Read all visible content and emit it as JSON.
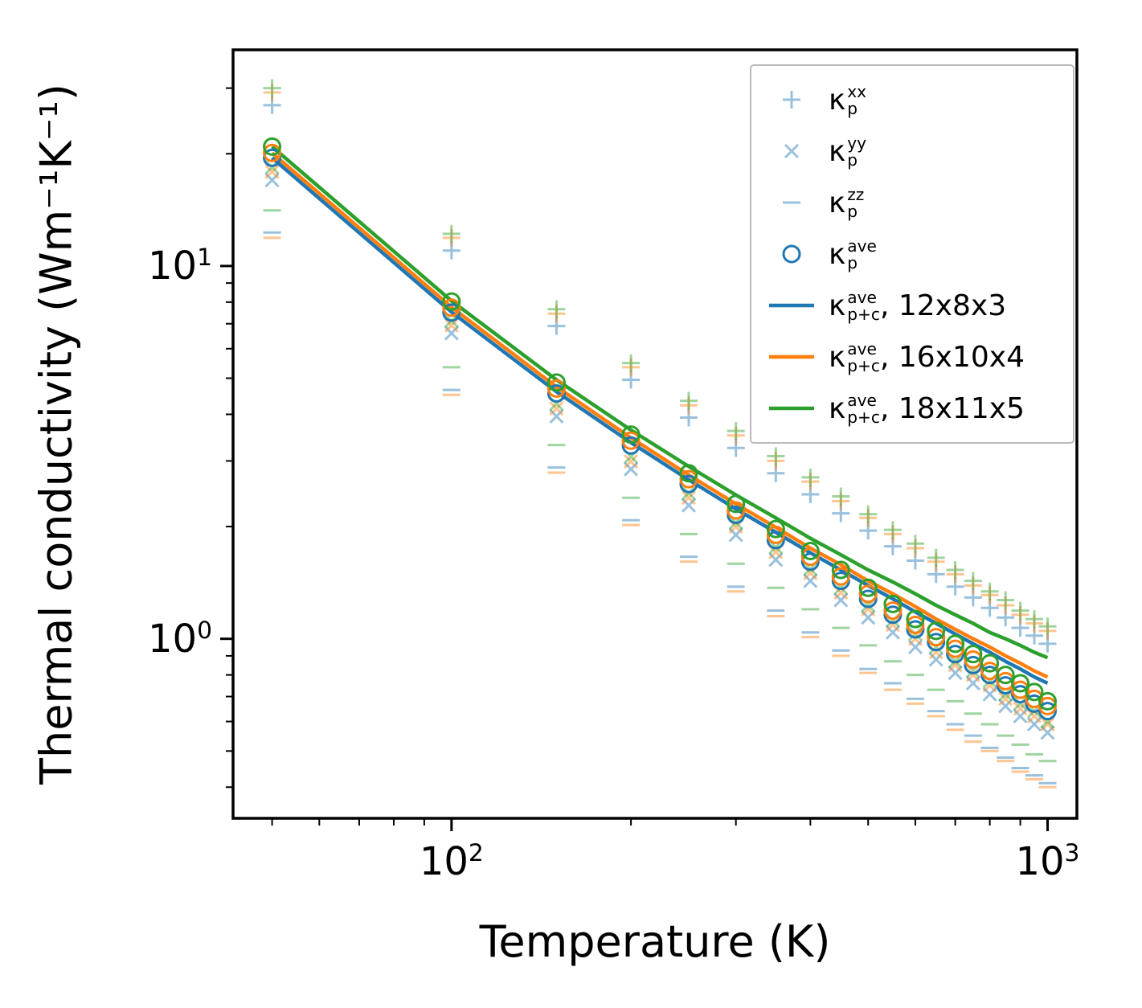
{
  "chart_data": {
    "type": "scatter",
    "title": "",
    "xlabel": "Temperature (K)",
    "ylabel": "Thermal conductivity (Wm⁻¹K⁻¹)",
    "x_scale": "log",
    "y_scale": "log",
    "x_range": [
      43,
      1120
    ],
    "y_range": [
      0.33,
      38
    ],
    "x_ticks": [
      {
        "value": 100,
        "base": "10",
        "exp": "2"
      },
      {
        "value": 1000,
        "base": "10",
        "exp": "3"
      }
    ],
    "x_minor_ticks": [
      50,
      60,
      70,
      80,
      90,
      200,
      300,
      400,
      500,
      600,
      700,
      800,
      900
    ],
    "y_ticks": [
      {
        "value": 10,
        "base": "10",
        "exp": "1"
      },
      {
        "value": 1,
        "base": "10",
        "exp": "0"
      }
    ],
    "y_minor_ticks": [
      0.4,
      0.5,
      0.6,
      0.7,
      0.8,
      0.9,
      2,
      3,
      4,
      5,
      6,
      7,
      8,
      9,
      20,
      30
    ],
    "colors": {
      "blue": "#1f77b4",
      "orange": "#ff7f0e",
      "green": "#2ca02c",
      "legend_frame": "#bbbbbb"
    },
    "temperatures": [
      50,
      100,
      150,
      200,
      250,
      300,
      350,
      400,
      450,
      500,
      550,
      600,
      650,
      700,
      750,
      800,
      850,
      900,
      950,
      1000
    ],
    "series": [
      {
        "name": "kappa_p_xx_grid1",
        "marker": "plus",
        "color": "#1f77b4",
        "opacity": 0.45,
        "values": [
          27.0,
          11.0,
          6.9,
          4.95,
          3.92,
          3.25,
          2.78,
          2.44,
          2.17,
          1.95,
          1.77,
          1.62,
          1.49,
          1.38,
          1.29,
          1.21,
          1.14,
          1.07,
          1.02,
          0.97
        ]
      },
      {
        "name": "kappa_p_xx_grid2",
        "marker": "plus",
        "color": "#ff7f0e",
        "opacity": 0.45,
        "values": [
          29.2,
          11.9,
          7.45,
          5.35,
          4.23,
          3.51,
          3.0,
          2.64,
          2.34,
          2.11,
          1.91,
          1.75,
          1.61,
          1.49,
          1.39,
          1.31,
          1.23,
          1.16,
          1.1,
          1.05
        ]
      },
      {
        "name": "kappa_p_xx_grid3",
        "marker": "plus",
        "color": "#2ca02c",
        "opacity": 0.45,
        "values": [
          30.0,
          12.2,
          7.66,
          5.49,
          4.35,
          3.61,
          3.09,
          2.71,
          2.41,
          2.16,
          1.96,
          1.8,
          1.65,
          1.53,
          1.43,
          1.34,
          1.27,
          1.19,
          1.13,
          1.08
        ]
      },
      {
        "name": "kappa_p_yy_grid1",
        "marker": "cross",
        "color": "#1f77b4",
        "opacity": 0.45,
        "values": [
          17.0,
          6.6,
          3.95,
          2.85,
          2.28,
          1.9,
          1.63,
          1.43,
          1.27,
          1.14,
          1.04,
          0.95,
          0.88,
          0.81,
          0.76,
          0.71,
          0.66,
          0.62,
          0.59,
          0.56
        ]
      },
      {
        "name": "kappa_p_yy_grid2",
        "marker": "cross",
        "color": "#ff7f0e",
        "opacity": 0.45,
        "values": [
          17.9,
          6.93,
          4.15,
          2.99,
          2.39,
          2.0,
          1.71,
          1.5,
          1.33,
          1.2,
          1.09,
          1.0,
          0.92,
          0.85,
          0.8,
          0.75,
          0.69,
          0.65,
          0.62,
          0.59
        ]
      },
      {
        "name": "kappa_p_yy_grid3",
        "marker": "cross",
        "color": "#2ca02c",
        "opacity": 0.45,
        "values": [
          18.4,
          7.13,
          4.27,
          3.08,
          2.46,
          2.05,
          1.76,
          1.54,
          1.37,
          1.23,
          1.12,
          1.03,
          0.95,
          0.87,
          0.82,
          0.77,
          0.71,
          0.67,
          0.64,
          0.6
        ]
      },
      {
        "name": "kappa_p_zz_grid1",
        "marker": "dash",
        "color": "#1f77b4",
        "opacity": 0.45,
        "values": [
          12.3,
          4.65,
          2.88,
          2.08,
          1.66,
          1.38,
          1.19,
          1.04,
          0.93,
          0.83,
          0.76,
          0.69,
          0.64,
          0.59,
          0.55,
          0.51,
          0.48,
          0.45,
          0.43,
          0.41
        ]
      },
      {
        "name": "kappa_p_zz_grid2",
        "marker": "dash",
        "color": "#ff7f0e",
        "opacity": 0.45,
        "values": [
          11.9,
          4.51,
          2.79,
          2.02,
          1.61,
          1.34,
          1.15,
          1.01,
          0.9,
          0.81,
          0.73,
          0.67,
          0.62,
          0.57,
          0.53,
          0.5,
          0.47,
          0.44,
          0.42,
          0.4
        ]
      },
      {
        "name": "kappa_p_zz_grid3",
        "marker": "dash",
        "color": "#2ca02c",
        "opacity": 0.45,
        "values": [
          14.1,
          5.35,
          3.31,
          2.39,
          1.91,
          1.59,
          1.37,
          1.2,
          1.07,
          0.96,
          0.87,
          0.8,
          0.73,
          0.68,
          0.63,
          0.59,
          0.55,
          0.52,
          0.49,
          0.47
        ]
      },
      {
        "name": "kappa_p_plus_c_ave_12x8x3",
        "marker": "line",
        "color": "#1f77b4",
        "opacity": 1,
        "values": [
          19.5,
          7.52,
          4.6,
          3.36,
          2.67,
          2.23,
          1.93,
          1.7,
          1.53,
          1.39,
          1.28,
          1.18,
          1.1,
          1.03,
          0.97,
          0.92,
          0.87,
          0.83,
          0.79,
          0.76
        ]
      },
      {
        "name": "kappa_p_plus_c_ave_16x10x4",
        "marker": "line",
        "color": "#ff7f0e",
        "opacity": 1,
        "values": [
          20.1,
          7.75,
          4.74,
          3.46,
          2.75,
          2.3,
          1.99,
          1.75,
          1.58,
          1.43,
          1.32,
          1.22,
          1.13,
          1.06,
          1.0,
          0.95,
          0.9,
          0.86,
          0.82,
          0.79
        ]
      },
      {
        "name": "kappa_p_plus_c_ave_18x11x5",
        "marker": "line",
        "color": "#2ca02c",
        "opacity": 1,
        "values": [
          20.9,
          8.06,
          4.95,
          3.63,
          2.9,
          2.43,
          2.11,
          1.86,
          1.68,
          1.53,
          1.42,
          1.32,
          1.23,
          1.16,
          1.1,
          1.04,
          1.0,
          0.96,
          0.92,
          0.89
        ]
      },
      {
        "name": "kappa_p_ave_12x8x3",
        "marker": "circle",
        "color": "#1f77b4",
        "opacity": 1,
        "values": [
          19.5,
          7.5,
          4.55,
          3.3,
          2.6,
          2.15,
          1.84,
          1.61,
          1.43,
          1.28,
          1.16,
          1.06,
          0.98,
          0.91,
          0.85,
          0.8,
          0.75,
          0.71,
          0.67,
          0.64
        ]
      },
      {
        "name": "kappa_p_ave_16x10x4",
        "marker": "circle",
        "color": "#ff7f0e",
        "opacity": 1,
        "values": [
          20.1,
          7.73,
          4.69,
          3.4,
          2.68,
          2.21,
          1.9,
          1.66,
          1.47,
          1.32,
          1.19,
          1.09,
          1.01,
          0.94,
          0.88,
          0.82,
          0.77,
          0.73,
          0.69,
          0.66
        ]
      },
      {
        "name": "kappa_p_ave_18x11x5",
        "marker": "circle",
        "color": "#2ca02c",
        "opacity": 1,
        "values": [
          20.9,
          8.03,
          4.87,
          3.53,
          2.78,
          2.3,
          1.97,
          1.72,
          1.53,
          1.37,
          1.24,
          1.13,
          1.05,
          0.97,
          0.91,
          0.86,
          0.8,
          0.76,
          0.72,
          0.68
        ]
      }
    ],
    "legend": {
      "position": "upper right",
      "entries": [
        {
          "marker": "plus",
          "color": "#1f77b4",
          "opacity": 0.45,
          "symbol": "κ",
          "sup": "xx",
          "sub": "p",
          "suffix": ""
        },
        {
          "marker": "cross",
          "color": "#1f77b4",
          "opacity": 0.45,
          "symbol": "κ",
          "sup": "yy",
          "sub": "p",
          "suffix": ""
        },
        {
          "marker": "dash",
          "color": "#1f77b4",
          "opacity": 0.45,
          "symbol": "κ",
          "sup": "zz",
          "sub": "p",
          "suffix": ""
        },
        {
          "marker": "circle",
          "color": "#1f77b4",
          "opacity": 1,
          "symbol": "κ",
          "sup": "ave",
          "sub": "p",
          "suffix": ""
        },
        {
          "marker": "line",
          "color": "#1f77b4",
          "opacity": 1,
          "symbol": "κ",
          "sup": "ave",
          "sub": "p+c",
          "suffix": ", 12x8x3"
        },
        {
          "marker": "line",
          "color": "#ff7f0e",
          "opacity": 1,
          "symbol": "κ",
          "sup": "ave",
          "sub": "p+c",
          "suffix": ", 16x10x4"
        },
        {
          "marker": "line",
          "color": "#2ca02c",
          "opacity": 1,
          "symbol": "κ",
          "sup": "ave",
          "sub": "p+c",
          "suffix": ", 18x11x5"
        }
      ]
    }
  }
}
